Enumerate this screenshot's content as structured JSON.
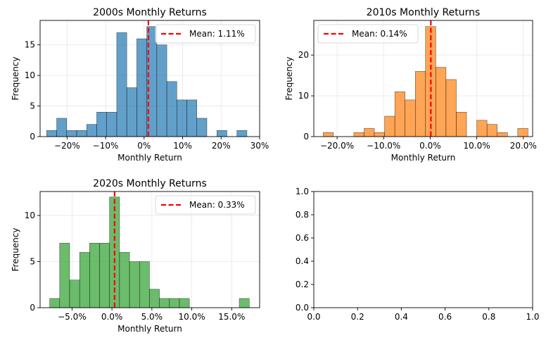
{
  "chart_data": [
    {
      "type": "bar",
      "title": "2000s Monthly Returns",
      "xlabel": "Monthly Return",
      "ylabel": "Frequency",
      "xlim": [
        -27,
        30
      ],
      "ylim": [
        0,
        19
      ],
      "xticks": [
        -20,
        -10,
        0,
        10,
        20,
        30
      ],
      "xtick_labels": [
        "−20%",
        "−10%",
        "0%",
        "10%",
        "20%",
        "30%"
      ],
      "yticks": [
        0,
        5,
        10,
        15
      ],
      "bin_edges": [
        -25.3,
        -22.7,
        -20.1,
        -17.5,
        -14.9,
        -12.3,
        -9.7,
        -7.1,
        -4.5,
        -1.9,
        0.7,
        3.3,
        5.9,
        8.5,
        11.1,
        13.7,
        16.3,
        18.9,
        21.5,
        24.1,
        26.7,
        29.3
      ],
      "values": [
        1,
        3,
        1,
        1,
        2,
        4,
        4,
        17,
        8,
        16,
        18,
        15,
        9,
        6,
        6,
        3,
        0,
        1,
        0,
        1,
        0
      ],
      "mean": 1.11,
      "legend": {
        "label": "Mean: 1.11%",
        "position": "upper right"
      },
      "grid": true,
      "color": "#1f77b4"
    },
    {
      "type": "bar",
      "title": "2010s Monthly Returns",
      "xlabel": "Monthly Return",
      "ylabel": "Frequency",
      "xlim": [
        -25,
        22
      ],
      "ylim": [
        0,
        28.5
      ],
      "xticks": [
        -20,
        -10,
        0,
        10,
        20
      ],
      "xtick_labels": [
        "−20.0%",
        "−10.0%",
        "0.0%",
        "10.0%",
        "20.0%"
      ],
      "yticks": [
        0,
        10,
        20
      ],
      "bin_edges": [
        -23,
        -20.8,
        -18.6,
        -16.4,
        -14.2,
        -12.0,
        -9.8,
        -7.6,
        -5.4,
        -3.2,
        -1.0,
        1.2,
        3.4,
        5.6,
        7.8,
        10.0,
        12.2,
        14.4,
        16.6,
        18.8,
        21.0
      ],
      "values": [
        1,
        0,
        0,
        1,
        2,
        1,
        5,
        11,
        9,
        16,
        27,
        17,
        14,
        6,
        0,
        4,
        3,
        1,
        0,
        2
      ],
      "mean": 0.14,
      "legend": {
        "label": "Mean: 0.14%",
        "position": "upper left"
      },
      "grid": true,
      "color": "#ff7f0e"
    },
    {
      "type": "bar",
      "title": "2020s Monthly Returns",
      "xlabel": "Monthly Return",
      "ylabel": "Frequency",
      "xlim": [
        -9,
        18.5
      ],
      "ylim": [
        0,
        12.6
      ],
      "xticks": [
        -5,
        0,
        5,
        10,
        15
      ],
      "xtick_labels": [
        "−5.0%",
        "0.0%",
        "5.0%",
        "10.0%",
        "15.0%"
      ],
      "yticks": [
        0,
        5,
        10
      ],
      "bin_edges": [
        -7.8,
        -6.55,
        -5.3,
        -4.05,
        -2.8,
        -1.55,
        -0.3,
        0.95,
        2.2,
        3.45,
        4.7,
        5.95,
        7.2,
        8.45,
        9.7,
        10.95,
        12.2,
        13.45,
        14.7,
        15.95,
        17.2
      ],
      "values": [
        1,
        7,
        3,
        6,
        7,
        7,
        12,
        6,
        5,
        5,
        2,
        1,
        1,
        1,
        0,
        0,
        0,
        0,
        0,
        1
      ],
      "mean": 0.33,
      "legend": {
        "label": "Mean: 0.33%",
        "position": "upper right"
      },
      "grid": true,
      "color": "#2ca02c"
    },
    {
      "type": "line",
      "title": "",
      "xlabel": "",
      "ylabel": "",
      "xlim": [
        0,
        1
      ],
      "ylim": [
        0,
        1
      ],
      "xticks": [
        0,
        0.2,
        0.4,
        0.6,
        0.8,
        1.0
      ],
      "xtick_labels": [
        "0.0",
        "0.2",
        "0.4",
        "0.6",
        "0.8",
        "1.0"
      ],
      "yticks": [
        0,
        0.2,
        0.4,
        0.6,
        0.8,
        1.0
      ],
      "ytick_labels": [
        "0.0",
        "0.2",
        "0.4",
        "0.6",
        "0.8",
        "1.0"
      ],
      "series": [],
      "grid": false
    }
  ]
}
